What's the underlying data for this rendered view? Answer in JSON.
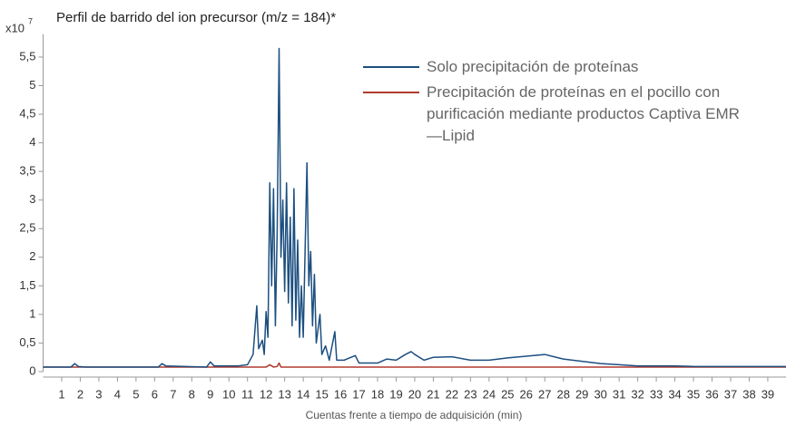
{
  "chart_data": {
    "type": "line",
    "title": "Perfil de barrido del ion precursor (m/z = 184)*",
    "y_scale_label": "x10",
    "y_scale_exponent": "7",
    "x_label": "Cuentas frente a tiempo de adquisición (min)",
    "xlim": [
      0,
      40
    ],
    "xticks": [
      1,
      2,
      3,
      4,
      5,
      6,
      7,
      8,
      9,
      10,
      11,
      12,
      13,
      14,
      15,
      16,
      17,
      18,
      19,
      20,
      21,
      22,
      23,
      24,
      25,
      26,
      27,
      28,
      29,
      30,
      31,
      32,
      33,
      34,
      35,
      36,
      37,
      38,
      39
    ],
    "ylim": [
      0,
      5.9
    ],
    "yticks": [
      0,
      {
        "value": 0.5,
        "label": "0,5"
      },
      1,
      {
        "value": 1.5,
        "label": "1,5"
      },
      2,
      {
        "value": 2.5,
        "label": "2,5"
      },
      3,
      {
        "value": 3.5,
        "label": "3,5"
      },
      4,
      {
        "value": 4.5,
        "label": "4,5"
      },
      5,
      {
        "value": 5.5,
        "label": "5,5"
      }
    ],
    "series": [
      {
        "name": "Solo precipitación de proteínas",
        "color": "#1c4f80",
        "x": [
          0,
          1.5,
          1.7,
          1.9,
          2.3,
          6.2,
          6.4,
          6.6,
          8.8,
          9.0,
          9.2,
          10.5,
          11.0,
          11.3,
          11.5,
          11.6,
          11.8,
          11.9,
          12.0,
          12.1,
          12.2,
          12.3,
          12.4,
          12.5,
          12.6,
          12.7,
          12.8,
          12.9,
          13.0,
          13.1,
          13.2,
          13.3,
          13.4,
          13.5,
          13.6,
          13.7,
          13.8,
          13.9,
          14.0,
          14.2,
          14.3,
          14.4,
          14.5,
          14.6,
          14.7,
          14.9,
          15.0,
          15.2,
          15.4,
          15.7,
          15.8,
          16.2,
          16.8,
          17.0,
          18,
          18.5,
          19,
          19.5,
          19.8,
          20,
          20.5,
          21,
          22,
          23,
          24,
          25,
          26,
          27,
          27.5,
          28,
          29,
          30,
          31,
          32,
          33,
          34,
          35,
          40
        ],
        "values": [
          0.08,
          0.08,
          0.14,
          0.09,
          0.08,
          0.08,
          0.14,
          0.1,
          0.08,
          0.17,
          0.1,
          0.1,
          0.12,
          0.3,
          1.15,
          0.4,
          0.55,
          0.3,
          1.05,
          0.6,
          3.3,
          1.5,
          3.2,
          0.8,
          2.5,
          5.65,
          2.0,
          3.0,
          1.4,
          3.3,
          1.2,
          2.7,
          0.8,
          3.2,
          0.9,
          2.3,
          0.6,
          1.5,
          0.6,
          3.65,
          1.5,
          2.1,
          0.8,
          1.7,
          0.5,
          1.0,
          0.3,
          0.45,
          0.2,
          0.7,
          0.2,
          0.2,
          0.28,
          0.15,
          0.15,
          0.22,
          0.2,
          0.3,
          0.35,
          0.3,
          0.2,
          0.25,
          0.26,
          0.2,
          0.2,
          0.24,
          0.27,
          0.3,
          0.26,
          0.22,
          0.18,
          0.14,
          0.12,
          0.1,
          0.1,
          0.1,
          0.09,
          0.09
        ]
      },
      {
        "name": "Precipitación de proteínas en el pocillo con purificación mediante productos Captiva EMR—Lipid",
        "color": "#b03a2e",
        "x": [
          0,
          12.0,
          12.2,
          12.4,
          12.6,
          12.7,
          12.8,
          13.0,
          40
        ],
        "values": [
          0.08,
          0.08,
          0.12,
          0.08,
          0.09,
          0.15,
          0.08,
          0.08,
          0.08
        ]
      }
    ]
  }
}
